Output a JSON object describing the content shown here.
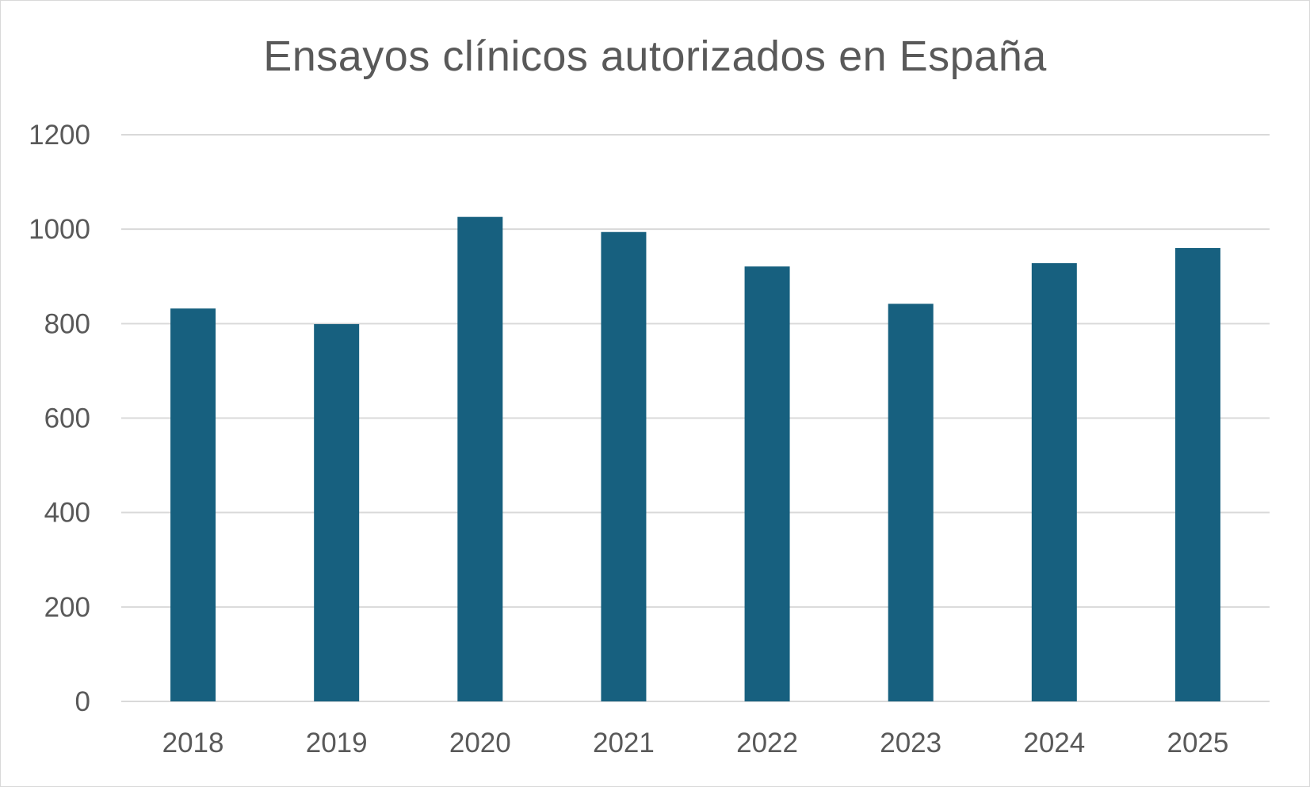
{
  "chart_data": {
    "type": "bar",
    "title": "Ensayos clínicos autorizados en España",
    "categories": [
      "2018",
      "2019",
      "2020",
      "2021",
      "2022",
      "2023",
      "2024",
      "2025"
    ],
    "values": [
      832,
      799,
      1026,
      994,
      921,
      842,
      928,
      960
    ],
    "ylim": [
      0,
      1200
    ],
    "yticks": [
      "0",
      "200",
      "400",
      "600",
      "800",
      "1000",
      "1200"
    ],
    "grid": true,
    "bar_color": "#17607f",
    "gridline_color": "#d9d9d9",
    "text_color": "#595959"
  }
}
